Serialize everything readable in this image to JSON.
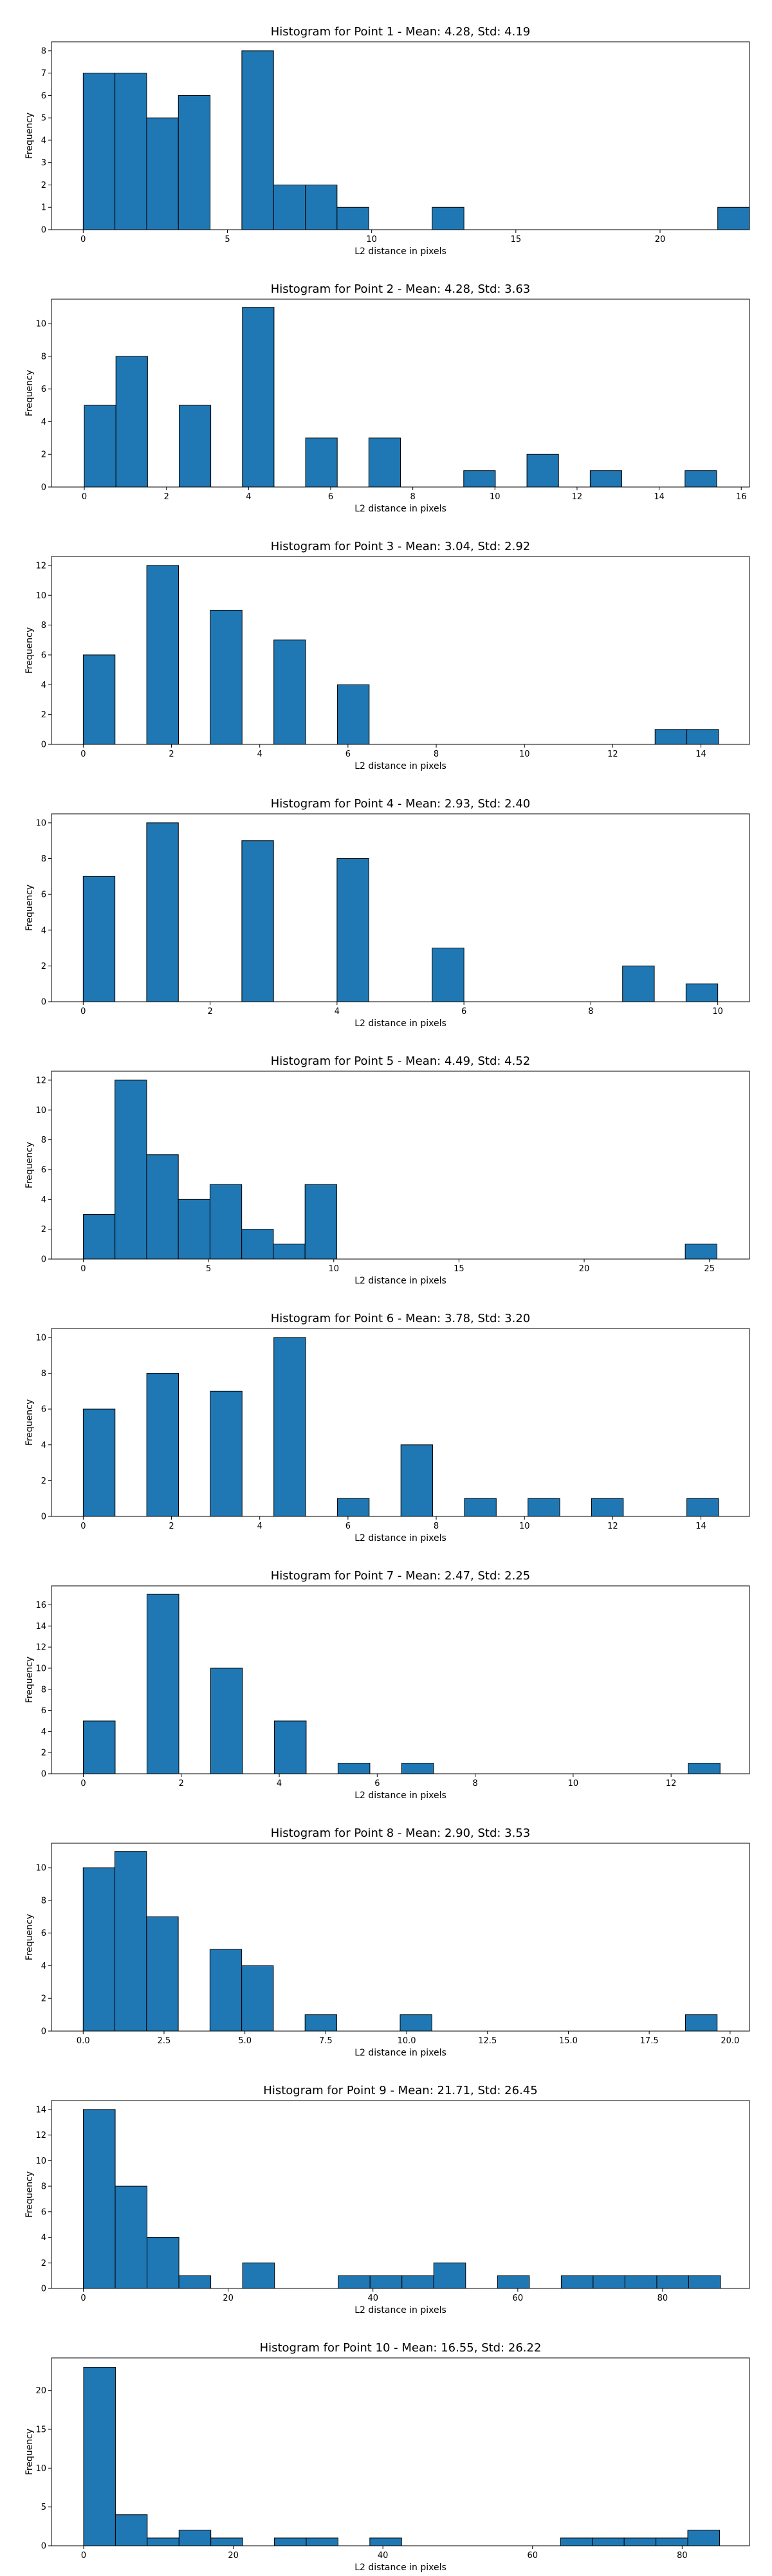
{
  "figure_title": "",
  "chart_data": [
    {
      "type": "bar",
      "title": "Histogram for Point 1 - Mean: 4.28, Std: 4.19",
      "xlabel": "L2 distance in pixels",
      "ylabel": "Frequency",
      "xlim": [
        -1.1,
        23.1
      ],
      "ylim": [
        0,
        8.4
      ],
      "xticks": [
        0,
        5,
        10,
        15,
        20
      ],
      "xtick_labels": [
        "0",
        "5",
        "10",
        "15",
        "20"
      ],
      "yticks": [
        0,
        1,
        2,
        3,
        4,
        5,
        6,
        7,
        8
      ],
      "bin_edges": [
        0,
        1.1,
        2.2,
        3.3,
        4.4,
        5.5,
        6.6,
        7.7,
        8.8,
        9.9,
        11.0,
        12.1,
        13.2,
        14.3,
        15.4,
        16.5,
        17.6,
        18.7,
        19.8,
        20.9,
        22.0,
        23.1
      ],
      "values": [
        7,
        7,
        5,
        6,
        0,
        8,
        2,
        2,
        1,
        0,
        0,
        1,
        0,
        0,
        0,
        0,
        0,
        0,
        0,
        0,
        1
      ]
    },
    {
      "type": "bar",
      "title": "Histogram for Point 2 - Mean: 4.28, Std: 3.63",
      "xlabel": "L2 distance in pixels",
      "ylabel": "Frequency",
      "xlim": [
        -0.8,
        16.2
      ],
      "ylim": [
        0,
        11.5
      ],
      "xticks": [
        0,
        2,
        4,
        6,
        8,
        10,
        12,
        14,
        16
      ],
      "xtick_labels": [
        "0",
        "2",
        "4",
        "6",
        "8",
        "10",
        "12",
        "14",
        "16"
      ],
      "yticks": [
        0,
        2,
        4,
        6,
        8,
        10
      ],
      "bin_edges": [
        0,
        0.77,
        1.54,
        2.31,
        3.08,
        3.85,
        4.62,
        5.39,
        6.16,
        6.93,
        7.7,
        8.47,
        9.24,
        10.01,
        10.78,
        11.55,
        12.32,
        13.09,
        13.86,
        14.63,
        15.4
      ],
      "values": [
        5,
        8,
        0,
        5,
        0,
        11,
        0,
        3,
        0,
        3,
        0,
        0,
        1,
        0,
        2,
        0,
        1,
        0,
        0,
        1
      ]
    },
    {
      "type": "bar",
      "title": "Histogram for Point 3 - Mean: 3.04, Std: 2.92",
      "xlabel": "L2 distance in pixels",
      "ylabel": "Frequency",
      "xlim": [
        -0.72,
        15.1
      ],
      "ylim": [
        0,
        12.6
      ],
      "xticks": [
        0,
        2,
        4,
        6,
        8,
        10,
        12,
        14
      ],
      "xtick_labels": [
        "0",
        "2",
        "4",
        "6",
        "8",
        "10",
        "12",
        "14"
      ],
      "yticks": [
        0,
        2,
        4,
        6,
        8,
        10,
        12
      ],
      "bin_edges": [
        0,
        0.72,
        1.44,
        2.16,
        2.88,
        3.6,
        4.32,
        5.04,
        5.76,
        6.48,
        7.2,
        7.92,
        8.64,
        9.36,
        10.08,
        10.8,
        11.52,
        12.24,
        12.96,
        13.68,
        14.4
      ],
      "values": [
        6,
        0,
        12,
        0,
        9,
        0,
        7,
        0,
        4,
        0,
        0,
        0,
        0,
        0,
        0,
        0,
        0,
        0,
        1,
        1
      ]
    },
    {
      "type": "bar",
      "title": "Histogram for Point 4 - Mean: 2.93, Std: 2.40",
      "xlabel": "L2 distance in pixels",
      "ylabel": "Frequency",
      "xlim": [
        -0.5,
        10.5
      ],
      "ylim": [
        0,
        10.5
      ],
      "xticks": [
        0,
        2,
        4,
        6,
        8,
        10
      ],
      "xtick_labels": [
        "0",
        "2",
        "4",
        "6",
        "8",
        "10"
      ],
      "yticks": [
        0,
        2,
        4,
        6,
        8,
        10
      ],
      "bin_edges": [
        0,
        0.5,
        1.0,
        1.5,
        2.0,
        2.5,
        3.0,
        3.5,
        4.0,
        4.5,
        5.0,
        5.5,
        6.0,
        6.5,
        7.0,
        7.5,
        8.0,
        8.5,
        9.0,
        9.5,
        10.0
      ],
      "values": [
        7,
        0,
        10,
        0,
        0,
        9,
        0,
        0,
        8,
        0,
        0,
        3,
        0,
        0,
        0,
        0,
        0,
        2,
        0,
        1
      ]
    },
    {
      "type": "bar",
      "title": "Histogram for Point 5 - Mean: 4.49, Std: 4.52",
      "xlabel": "L2 distance in pixels",
      "ylabel": "Frequency",
      "xlim": [
        -1.27,
        26.6
      ],
      "ylim": [
        0,
        12.6
      ],
      "xticks": [
        0,
        5,
        10,
        15,
        20,
        25
      ],
      "xtick_labels": [
        "0",
        "5",
        "10",
        "15",
        "20",
        "25"
      ],
      "yticks": [
        0,
        2,
        4,
        6,
        8,
        10,
        12
      ],
      "bin_edges": [
        0,
        1.265,
        2.53,
        3.795,
        5.06,
        6.325,
        7.59,
        8.855,
        10.12,
        11.385,
        12.65,
        13.915,
        15.18,
        16.445,
        17.71,
        18.975,
        20.24,
        21.505,
        22.77,
        24.035,
        25.3
      ],
      "values": [
        3,
        12,
        7,
        4,
        5,
        2,
        1,
        5,
        0,
        0,
        0,
        0,
        0,
        0,
        0,
        0,
        0,
        0,
        0,
        1
      ]
    },
    {
      "type": "bar",
      "title": "Histogram for Point 6 - Mean: 3.78, Std: 3.20",
      "xlabel": "L2 distance in pixels",
      "ylabel": "Frequency",
      "xlim": [
        -0.72,
        15.1
      ],
      "ylim": [
        0,
        10.5
      ],
      "xticks": [
        0,
        2,
        4,
        6,
        8,
        10,
        12,
        14
      ],
      "xtick_labels": [
        "0",
        "2",
        "4",
        "6",
        "8",
        "10",
        "12",
        "14"
      ],
      "yticks": [
        0,
        2,
        4,
        6,
        8,
        10
      ],
      "bin_edges": [
        0,
        0.72,
        1.44,
        2.16,
        2.88,
        3.6,
        4.32,
        5.04,
        5.76,
        6.48,
        7.2,
        7.92,
        8.64,
        9.36,
        10.08,
        10.8,
        11.52,
        12.24,
        12.96,
        13.68,
        14.4
      ],
      "values": [
        6,
        0,
        8,
        0,
        7,
        0,
        10,
        0,
        1,
        0,
        4,
        0,
        1,
        0,
        1,
        0,
        1,
        0,
        0,
        1
      ]
    },
    {
      "type": "bar",
      "title": "Histogram for Point 7 - Mean: 2.47, Std: 2.25",
      "xlabel": "L2 distance in pixels",
      "ylabel": "Frequency",
      "xlim": [
        -0.65,
        13.6
      ],
      "ylim": [
        0,
        17.8
      ],
      "xticks": [
        0,
        2,
        4,
        6,
        8,
        10,
        12
      ],
      "xtick_labels": [
        "0",
        "2",
        "4",
        "6",
        "8",
        "10",
        "12"
      ],
      "yticks": [
        0,
        2,
        4,
        6,
        8,
        10,
        12,
        14,
        16
      ],
      "bin_edges": [
        0,
        0.65,
        1.3,
        1.95,
        2.6,
        3.25,
        3.9,
        4.55,
        5.2,
        5.85,
        6.5,
        7.15,
        7.8,
        8.45,
        9.1,
        9.75,
        10.4,
        11.05,
        11.7,
        12.35,
        13.0
      ],
      "values": [
        5,
        0,
        17,
        0,
        10,
        0,
        5,
        0,
        1,
        0,
        1,
        0,
        0,
        0,
        0,
        0,
        0,
        0,
        0,
        1
      ]
    },
    {
      "type": "bar",
      "title": "Histogram for Point 8 - Mean: 2.90, Std: 3.53",
      "xlabel": "L2 distance in pixels",
      "ylabel": "Frequency",
      "xlim": [
        -0.98,
        20.6
      ],
      "ylim": [
        0,
        11.5
      ],
      "xticks": [
        0,
        2.5,
        5,
        7.5,
        10,
        12.5,
        15,
        17.5,
        20
      ],
      "xtick_labels": [
        "0.0",
        "2.5",
        "5.0",
        "7.5",
        "10.0",
        "12.5",
        "15.0",
        "17.5",
        "20.0"
      ],
      "yticks": [
        0,
        2,
        4,
        6,
        8,
        10
      ],
      "bin_edges": [
        0,
        0.98,
        1.96,
        2.94,
        3.92,
        4.9,
        5.88,
        6.86,
        7.84,
        8.82,
        9.8,
        10.78,
        11.76,
        12.74,
        13.72,
        14.7,
        15.68,
        16.66,
        17.64,
        18.62,
        19.6
      ],
      "values": [
        10,
        11,
        7,
        0,
        5,
        4,
        0,
        1,
        0,
        0,
        1,
        0,
        0,
        0,
        0,
        0,
        0,
        0,
        0,
        1
      ]
    },
    {
      "type": "bar",
      "title": "Histogram for Point 9 - Mean: 21.71, Std: 26.45",
      "xlabel": "L2 distance in pixels",
      "ylabel": "Frequency",
      "xlim": [
        -4.4,
        92.0
      ],
      "ylim": [
        0,
        14.7
      ],
      "xticks": [
        0,
        20,
        40,
        60,
        80
      ],
      "xtick_labels": [
        "0",
        "20",
        "40",
        "60",
        "80"
      ],
      "yticks": [
        0,
        2,
        4,
        6,
        8,
        10,
        12,
        14
      ],
      "bin_edges": [
        0,
        4.4,
        8.8,
        13.2,
        17.6,
        22.0,
        26.4,
        30.8,
        35.2,
        39.6,
        44.0,
        48.4,
        52.8,
        57.2,
        61.6,
        66.0,
        70.4,
        74.8,
        79.2,
        83.6,
        88.0
      ],
      "values": [
        14,
        8,
        4,
        1,
        0,
        2,
        0,
        0,
        1,
        1,
        1,
        2,
        0,
        1,
        0,
        1,
        1,
        1,
        1,
        1
      ]
    },
    {
      "type": "bar",
      "title": "Histogram for Point 10 - Mean: 16.55, Std: 26.22",
      "xlabel": "L2 distance in pixels",
      "ylabel": "Frequency",
      "xlim": [
        -4.3,
        89.0
      ],
      "ylim": [
        0,
        24.2
      ],
      "xticks": [
        0,
        20,
        40,
        60,
        80
      ],
      "xtick_labels": [
        "0",
        "20",
        "40",
        "60",
        "80"
      ],
      "yticks": [
        0,
        5,
        10,
        15,
        20
      ],
      "bin_edges": [
        0,
        4.25,
        8.5,
        12.75,
        17.0,
        21.25,
        25.5,
        29.75,
        34.0,
        38.25,
        42.5,
        46.75,
        51.0,
        55.25,
        59.5,
        63.75,
        68.0,
        72.25,
        76.5,
        80.75,
        85.0
      ],
      "values": [
        23,
        4,
        1,
        2,
        1,
        0,
        1,
        1,
        0,
        1,
        0,
        0,
        0,
        0,
        0,
        1,
        1,
        1,
        1,
        2
      ]
    }
  ]
}
